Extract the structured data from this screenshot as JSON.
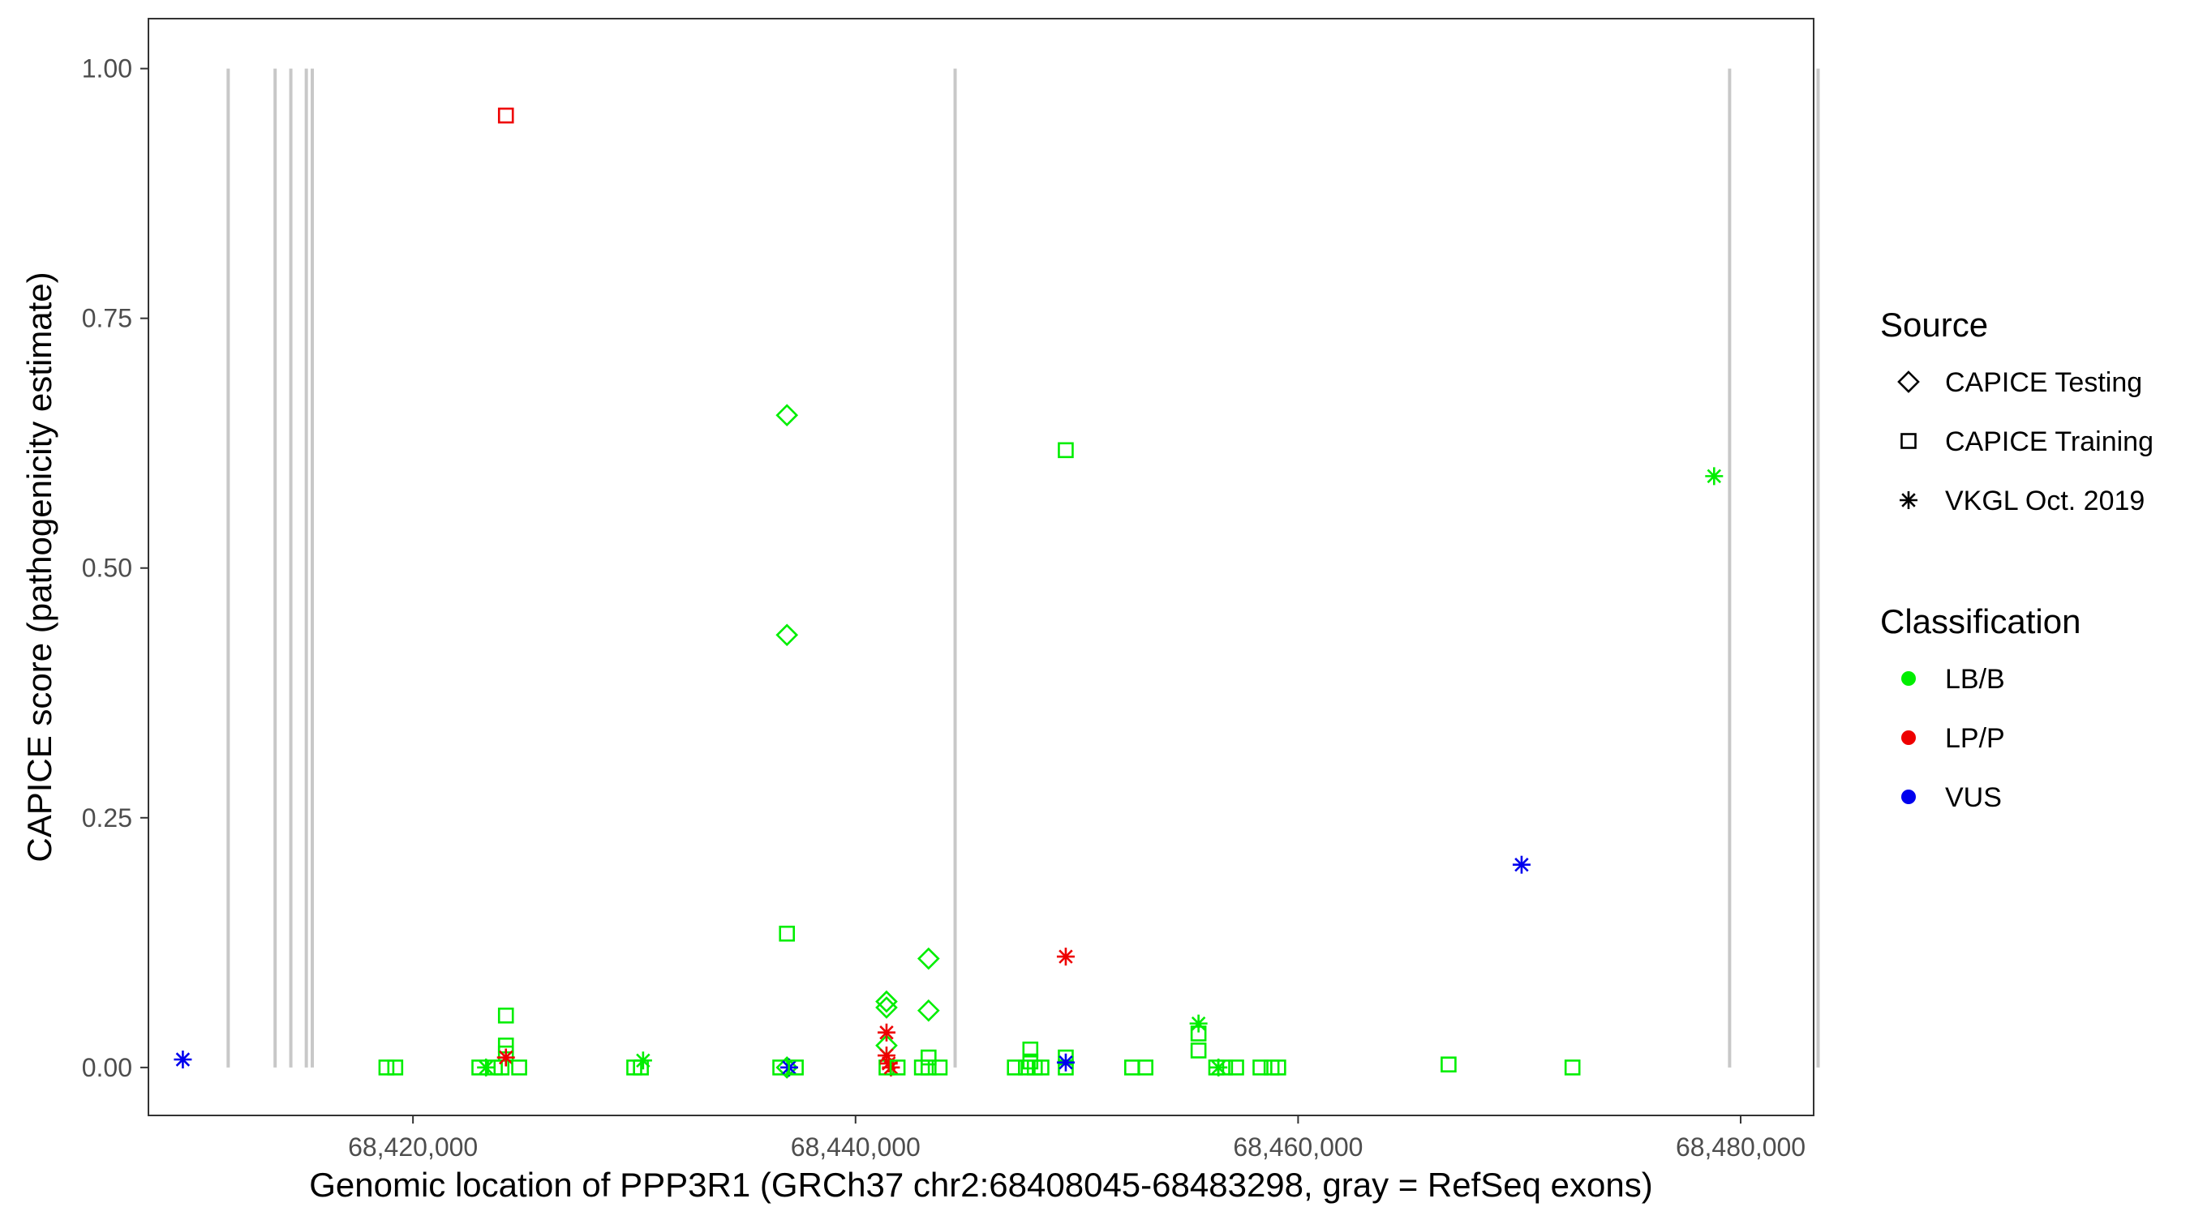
{
  "chart_data": {
    "type": "scatter",
    "title": "",
    "xlabel": "Genomic location of PPP3R1 (GRCh37 chr2:68408045-68483298, gray = RefSeq exons)",
    "ylabel": "CAPICE score (pathogenicity estimate)",
    "xlim": [
      68408045,
      68483298
    ],
    "ylim": [
      -0.048,
      1.05
    ],
    "x_ticks": [
      {
        "value": 68420000,
        "label": "68,420,000"
      },
      {
        "value": 68440000,
        "label": "68,440,000"
      },
      {
        "value": 68460000,
        "label": "68,460,000"
      },
      {
        "value": 68480000,
        "label": "68,480,000"
      }
    ],
    "y_ticks": [
      {
        "value": 0.0,
        "label": "0.00"
      },
      {
        "value": 0.25,
        "label": "0.25"
      },
      {
        "value": 0.5,
        "label": "0.50"
      },
      {
        "value": 0.75,
        "label": "0.75"
      },
      {
        "value": 1.0,
        "label": "1.00"
      }
    ],
    "exons": [
      68411650,
      68413770,
      68414480,
      68415180,
      68415450,
      68444500,
      68479500,
      68483500
    ],
    "colors": {
      "LB/B": "#00ee00",
      "LP/P": "#ee0000",
      "VUS": "#0000ee",
      "exon": "#c8c8c8"
    },
    "legend": {
      "placement": "right",
      "source_title": "Source",
      "source_entries": [
        {
          "label": "CAPICE Testing",
          "shape": "diamond"
        },
        {
          "label": "CAPICE Training",
          "shape": "square"
        },
        {
          "label": "VKGL Oct. 2019",
          "shape": "asterisk"
        }
      ],
      "class_title": "Classification",
      "class_entries": [
        {
          "label": "LB/B",
          "color": "#00ee00"
        },
        {
          "label": "LP/P",
          "color": "#ee0000"
        },
        {
          "label": "VUS",
          "color": "#0000ee"
        }
      ]
    },
    "points": [
      {
        "x": 68409600,
        "y": 0.008,
        "source": "VKGL Oct. 2019",
        "class": "VUS"
      },
      {
        "x": 68418800,
        "y": 0.0,
        "source": "CAPICE Training",
        "class": "LB/B"
      },
      {
        "x": 68419200,
        "y": 0.0,
        "source": "CAPICE Training",
        "class": "LB/B"
      },
      {
        "x": 68423000,
        "y": 0.0,
        "source": "CAPICE Training",
        "class": "LB/B"
      },
      {
        "x": 68423300,
        "y": 0.0,
        "source": "VKGL Oct. 2019",
        "class": "LB/B"
      },
      {
        "x": 68423700,
        "y": 0.0,
        "source": "CAPICE Training",
        "class": "LB/B"
      },
      {
        "x": 68424000,
        "y": 0.0,
        "source": "CAPICE Training",
        "class": "LB/B"
      },
      {
        "x": 68424200,
        "y": 0.052,
        "source": "CAPICE Training",
        "class": "LB/B"
      },
      {
        "x": 68424200,
        "y": 0.022,
        "source": "CAPICE Training",
        "class": "LB/B"
      },
      {
        "x": 68424200,
        "y": 0.014,
        "source": "CAPICE Training",
        "class": "LB/B"
      },
      {
        "x": 68424200,
        "y": 0.953,
        "source": "CAPICE Training",
        "class": "LP/P"
      },
      {
        "x": 68424200,
        "y": 0.01,
        "source": "VKGL Oct. 2019",
        "class": "LP/P"
      },
      {
        "x": 68424800,
        "y": 0.0,
        "source": "CAPICE Training",
        "class": "LB/B"
      },
      {
        "x": 68430000,
        "y": 0.0,
        "source": "CAPICE Training",
        "class": "LB/B"
      },
      {
        "x": 68430300,
        "y": 0.0,
        "source": "CAPICE Training",
        "class": "LB/B"
      },
      {
        "x": 68430400,
        "y": 0.007,
        "source": "VKGL Oct. 2019",
        "class": "LB/B"
      },
      {
        "x": 68436600,
        "y": 0.0,
        "source": "CAPICE Training",
        "class": "LB/B"
      },
      {
        "x": 68436900,
        "y": 0.653,
        "source": "CAPICE Testing",
        "class": "LB/B"
      },
      {
        "x": 68436900,
        "y": 0.433,
        "source": "CAPICE Testing",
        "class": "LB/B"
      },
      {
        "x": 68436900,
        "y": 0.134,
        "source": "CAPICE Training",
        "class": "LB/B"
      },
      {
        "x": 68436900,
        "y": 0.0,
        "source": "CAPICE Testing",
        "class": "LB/B"
      },
      {
        "x": 68437000,
        "y": 0.0,
        "source": "VKGL Oct. 2019",
        "class": "VUS"
      },
      {
        "x": 68437300,
        "y": 0.0,
        "source": "CAPICE Training",
        "class": "LB/B"
      },
      {
        "x": 68441400,
        "y": 0.066,
        "source": "CAPICE Testing",
        "class": "LB/B"
      },
      {
        "x": 68441400,
        "y": 0.06,
        "source": "CAPICE Testing",
        "class": "LB/B"
      },
      {
        "x": 68441400,
        "y": 0.022,
        "source": "CAPICE Testing",
        "class": "LB/B"
      },
      {
        "x": 68441400,
        "y": 0.0,
        "source": "CAPICE Training",
        "class": "LB/B"
      },
      {
        "x": 68441400,
        "y": 0.035,
        "source": "VKGL Oct. 2019",
        "class": "LP/P"
      },
      {
        "x": 68441400,
        "y": 0.012,
        "source": "VKGL Oct. 2019",
        "class": "LP/P"
      },
      {
        "x": 68441500,
        "y": 0.004,
        "source": "VKGL Oct. 2019",
        "class": "LP/P"
      },
      {
        "x": 68441600,
        "y": 0.0,
        "source": "VKGL Oct. 2019",
        "class": "LP/P"
      },
      {
        "x": 68441900,
        "y": 0.0,
        "source": "CAPICE Training",
        "class": "LB/B"
      },
      {
        "x": 68443000,
        "y": 0.0,
        "source": "CAPICE Training",
        "class": "LB/B"
      },
      {
        "x": 68443300,
        "y": 0.109,
        "source": "CAPICE Testing",
        "class": "LB/B"
      },
      {
        "x": 68443300,
        "y": 0.057,
        "source": "CAPICE Testing",
        "class": "LB/B"
      },
      {
        "x": 68443300,
        "y": 0.01,
        "source": "CAPICE Training",
        "class": "LB/B"
      },
      {
        "x": 68443300,
        "y": 0.0,
        "source": "CAPICE Training",
        "class": "LB/B"
      },
      {
        "x": 68443800,
        "y": 0.0,
        "source": "CAPICE Training",
        "class": "LB/B"
      },
      {
        "x": 68447200,
        "y": 0.0,
        "source": "CAPICE Training",
        "class": "LB/B"
      },
      {
        "x": 68447700,
        "y": 0.0,
        "source": "CAPICE Training",
        "class": "LB/B"
      },
      {
        "x": 68447900,
        "y": 0.018,
        "source": "CAPICE Training",
        "class": "LB/B"
      },
      {
        "x": 68447900,
        "y": 0.006,
        "source": "CAPICE Training",
        "class": "LB/B"
      },
      {
        "x": 68448100,
        "y": 0.0,
        "source": "CAPICE Training",
        "class": "LB/B"
      },
      {
        "x": 68448400,
        "y": 0.0,
        "source": "CAPICE Training",
        "class": "LB/B"
      },
      {
        "x": 68449500,
        "y": 0.618,
        "source": "CAPICE Training",
        "class": "LB/B"
      },
      {
        "x": 68449500,
        "y": 0.01,
        "source": "CAPICE Training",
        "class": "LB/B"
      },
      {
        "x": 68449500,
        "y": 0.0,
        "source": "CAPICE Training",
        "class": "LB/B"
      },
      {
        "x": 68449500,
        "y": 0.111,
        "source": "VKGL Oct. 2019",
        "class": "LP/P"
      },
      {
        "x": 68449500,
        "y": 0.005,
        "source": "VKGL Oct. 2019",
        "class": "VUS"
      },
      {
        "x": 68452500,
        "y": 0.0,
        "source": "CAPICE Training",
        "class": "LB/B"
      },
      {
        "x": 68453100,
        "y": 0.0,
        "source": "CAPICE Training",
        "class": "LB/B"
      },
      {
        "x": 68455500,
        "y": 0.044,
        "source": "VKGL Oct. 2019",
        "class": "LB/B"
      },
      {
        "x": 68455500,
        "y": 0.034,
        "source": "CAPICE Training",
        "class": "LB/B"
      },
      {
        "x": 68455500,
        "y": 0.017,
        "source": "CAPICE Training",
        "class": "LB/B"
      },
      {
        "x": 68456300,
        "y": 0.0,
        "source": "CAPICE Training",
        "class": "LB/B"
      },
      {
        "x": 68456400,
        "y": 0.0,
        "source": "VKGL Oct. 2019",
        "class": "LB/B"
      },
      {
        "x": 68456700,
        "y": 0.0,
        "source": "CAPICE Training",
        "class": "LB/B"
      },
      {
        "x": 68457200,
        "y": 0.0,
        "source": "CAPICE Training",
        "class": "LB/B"
      },
      {
        "x": 68458300,
        "y": 0.0,
        "source": "CAPICE Training",
        "class": "LB/B"
      },
      {
        "x": 68458800,
        "y": 0.0,
        "source": "CAPICE Training",
        "class": "LB/B"
      },
      {
        "x": 68459100,
        "y": 0.0,
        "source": "CAPICE Training",
        "class": "LB/B"
      },
      {
        "x": 68466800,
        "y": 0.003,
        "source": "CAPICE Training",
        "class": "LB/B"
      },
      {
        "x": 68470100,
        "y": 0.203,
        "source": "VKGL Oct. 2019",
        "class": "VUS"
      },
      {
        "x": 68472400,
        "y": 0.0,
        "source": "CAPICE Training",
        "class": "LB/B"
      },
      {
        "x": 68478800,
        "y": 0.592,
        "source": "VKGL Oct. 2019",
        "class": "LB/B"
      }
    ]
  }
}
